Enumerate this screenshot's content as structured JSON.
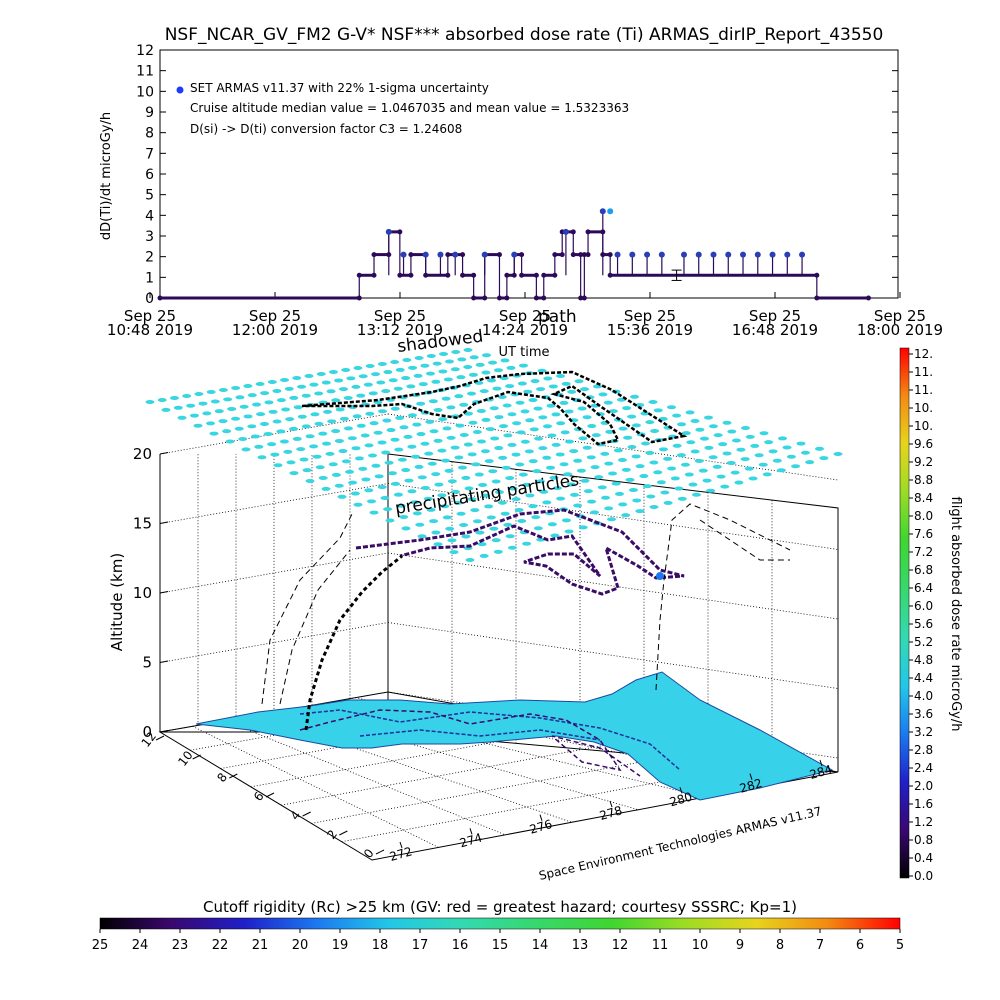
{
  "figure": {
    "title": "NSF_NCAR_GV_FM2 G-V* NSF*** absorbed dose rate (Ti) ARMAS_dirIP_Report_43550",
    "credit": "Space Environment Technologies ARMAS v11.37"
  },
  "chart_data": [
    {
      "type": "scatter",
      "name": "time-series",
      "ylabel": "dD(Ti)/dt microGy/h",
      "xlabel": "UT time",
      "ylim": [
        0,
        12
      ],
      "yticks": [
        "0",
        "1",
        "2",
        "3",
        "4",
        "5",
        "6",
        "7",
        "8",
        "9",
        "10",
        "11",
        "12"
      ],
      "xticks": [
        {
          "top": "Sep 25",
          "bottom": "10:48 2019"
        },
        {
          "top": "Sep 25",
          "bottom": "12:00 2019"
        },
        {
          "top": "Sep 25",
          "bottom": "13:12 2019"
        },
        {
          "top": "Sep 25",
          "bottom": "14:24 2019"
        },
        {
          "top": "Sep 25",
          "bottom": "15:36 2019"
        },
        {
          "top": "Sep 25",
          "bottom": "16:48 2019"
        },
        {
          "top": "Sep 25",
          "bottom": "18:00 2019"
        }
      ],
      "legend": [
        "SET ARMAS v11.37 with 22% 1-sigma uncertainty",
        "Cruise altitude median value = 1.0467035 and mean value = 1.5323363",
        "D(si) -> D(ti) conversion factor C3 = 1.24608"
      ],
      "overlay_labels": [
        "shadowed",
        "path"
      ],
      "legend_position": "top-left",
      "grid": false,
      "series_color": "#2c0a58",
      "segments": [
        {
          "x0": 0,
          "x1": 0.27,
          "y": 0
        },
        {
          "x0": 0.27,
          "x1": 0.29,
          "y": 1.1
        },
        {
          "x0": 0.29,
          "x1": 0.31,
          "y": 2.1
        },
        {
          "x0": 0.31,
          "x1": 0.325,
          "y": 3.2
        },
        {
          "x0": 0.325,
          "x1": 0.34,
          "y": 1.1
        },
        {
          "x0": 0.34,
          "x1": 0.36,
          "y": 2.1
        },
        {
          "x0": 0.36,
          "x1": 0.39,
          "y": 1.1
        },
        {
          "x0": 0.39,
          "x1": 0.41,
          "y": 2.1
        },
        {
          "x0": 0.41,
          "x1": 0.425,
          "y": 1.1
        },
        {
          "x0": 0.425,
          "x1": 0.44,
          "y": 0
        },
        {
          "x0": 0.44,
          "x1": 0.46,
          "y": 2.1
        },
        {
          "x0": 0.46,
          "x1": 0.47,
          "y": 0
        },
        {
          "x0": 0.47,
          "x1": 0.48,
          "y": 1.1
        },
        {
          "x0": 0.48,
          "x1": 0.49,
          "y": 2.1
        },
        {
          "x0": 0.49,
          "x1": 0.51,
          "y": 1.1
        },
        {
          "x0": 0.51,
          "x1": 0.52,
          "y": 0
        },
        {
          "x0": 0.52,
          "x1": 0.535,
          "y": 1.1
        },
        {
          "x0": 0.535,
          "x1": 0.545,
          "y": 2.1
        },
        {
          "x0": 0.545,
          "x1": 0.56,
          "y": 3.2
        },
        {
          "x0": 0.56,
          "x1": 0.57,
          "y": 2.1
        },
        {
          "x0": 0.57,
          "x1": 0.575,
          "y": 0
        },
        {
          "x0": 0.575,
          "x1": 0.58,
          "y": 2.1
        },
        {
          "x0": 0.58,
          "x1": 0.6,
          "y": 3.2
        },
        {
          "x0": 0.6,
          "x1": 0.61,
          "y": 2.1
        },
        {
          "x0": 0.61,
          "x1": 0.89,
          "y": 1.1
        },
        {
          "x0": 0.89,
          "x1": 0.96,
          "y": 0
        }
      ],
      "upper_points": [
        {
          "x": 0.31,
          "y": 3.2
        },
        {
          "x": 0.33,
          "y": 2.1
        },
        {
          "x": 0.36,
          "y": 2.1
        },
        {
          "x": 0.38,
          "y": 2.1
        },
        {
          "x": 0.4,
          "y": 2.1
        },
        {
          "x": 0.44,
          "y": 2.1
        },
        {
          "x": 0.48,
          "y": 2.1
        },
        {
          "x": 0.55,
          "y": 3.2
        },
        {
          "x": 0.6,
          "y": 4.2
        },
        {
          "x": 0.62,
          "y": 2.1
        },
        {
          "x": 0.64,
          "y": 2.1
        },
        {
          "x": 0.66,
          "y": 2.1
        },
        {
          "x": 0.68,
          "y": 2.1
        },
        {
          "x": 0.71,
          "y": 2.1
        },
        {
          "x": 0.73,
          "y": 2.1
        },
        {
          "x": 0.75,
          "y": 2.1
        },
        {
          "x": 0.77,
          "y": 2.1
        },
        {
          "x": 0.79,
          "y": 2.1
        },
        {
          "x": 0.81,
          "y": 2.1
        },
        {
          "x": 0.83,
          "y": 2.1
        },
        {
          "x": 0.85,
          "y": 2.1
        },
        {
          "x": 0.87,
          "y": 2.1
        }
      ],
      "highlight_point": {
        "x": 0.61,
        "y": 4.2
      },
      "error_bar": {
        "x": 0.7,
        "y": 1.1,
        "err": 0.25
      }
    },
    {
      "type": "scatter",
      "name": "3d-flight-track",
      "zlabel": "Altitude (km)",
      "zticks": [
        "0",
        "5",
        "10",
        "15",
        "20"
      ],
      "xticks": [
        "272",
        "274",
        "276",
        "278",
        "280",
        "282",
        "284"
      ],
      "yticks": [
        "0",
        "2",
        "4",
        "6",
        "8",
        "10",
        "12"
      ],
      "overlay_text": "precipitating particles",
      "track_color": "#3a0c66",
      "surface_color": "#37d6e0",
      "land_color": "#38d1ea"
    },
    {
      "type": "heatmap",
      "name": "dose-rate-colorbar",
      "label": "flight absorbed dose rate microGy/h",
      "ticks": [
        "0.0",
        "0.4",
        "0.8",
        "1.2",
        "1.6",
        "2.0",
        "2.4",
        "2.8",
        "3.2",
        "3.6",
        "4.0",
        "4.4",
        "4.8",
        "5.2",
        "5.6",
        "6.0",
        "6.4",
        "6.8",
        "7.2",
        "7.6",
        "8.0",
        "8.4",
        "8.8",
        "9.2",
        "9.6",
        "10.",
        "10.",
        "11.",
        "11.",
        "12."
      ],
      "orientation": "vertical"
    },
    {
      "type": "heatmap",
      "name": "cutoff-rigidity-colorbar",
      "label": "Cutoff rigidity (Rc) >25 km (GV: red = greatest hazard; courtesy SSSRC; Kp=1)",
      "ticks": [
        "25",
        "24",
        "23",
        "22",
        "21",
        "20",
        "19",
        "18",
        "17",
        "16",
        "15",
        "14",
        "13",
        "12",
        "11",
        "10",
        "9",
        "8",
        "7",
        "6",
        "5"
      ],
      "orientation": "horizontal"
    }
  ]
}
